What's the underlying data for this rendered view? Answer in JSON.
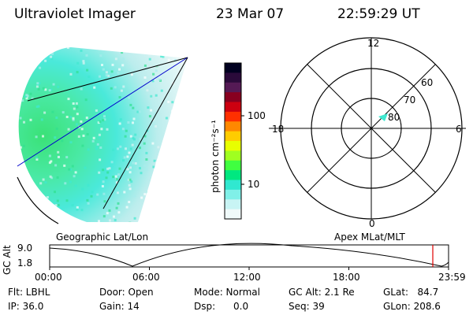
{
  "header": {
    "title": "Ultraviolet Imager",
    "date": "23 Mar 07",
    "time": "22:59:29 UT"
  },
  "colorbar": {
    "label": "photon cm⁻²s⁻¹",
    "ticks": [
      "100",
      "10"
    ],
    "colors": [
      "#000020",
      "#2a0a3a",
      "#551a55",
      "#880020",
      "#cc0010",
      "#ff3000",
      "#ff8800",
      "#ffcc00",
      "#e8ff00",
      "#a0ff20",
      "#40ff40",
      "#00e880",
      "#30e8d0",
      "#80f0e8",
      "#c8f4f4",
      "#f0fafa"
    ]
  },
  "polar_plot": {
    "mlt_labels": [
      "12",
      "18",
      "6",
      "0"
    ],
    "lat_labels": [
      "60",
      "70",
      "80"
    ],
    "marker_color": "#40e8d0"
  },
  "timeline": {
    "left_title": "Geographic Lat/Lon",
    "right_title": "Apex MLat/MLT",
    "y_label": "GC Alt",
    "y_ticks": [
      "9.0",
      "1.8"
    ],
    "x_ticks": [
      "00:00",
      "06:00",
      "12:00",
      "18:00",
      "23:59"
    ],
    "marker_color": "#e00000"
  },
  "info": {
    "flt": "Flt: LBHL",
    "ip": "IP: 36.0",
    "door": "Door: Open",
    "gain": "Gain: 14",
    "mode": "Mode: Normal",
    "dsp": "Dsp:      0.0",
    "gc_alt": "GC Alt: 2.1 Re",
    "seq": "Seq: 39",
    "glat": "GLat:   84.7",
    "glon": "GLon: 208.6"
  }
}
